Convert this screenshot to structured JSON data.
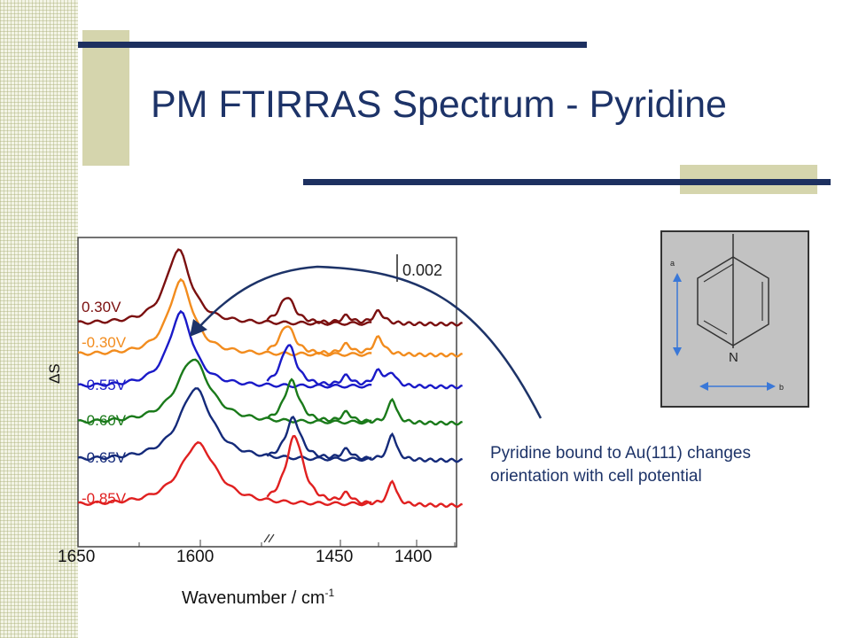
{
  "slide": {
    "title": "PM FTIRRAS Spectrum - Pyridine",
    "caption": "Pyridine bound to Au(111) changes orientation with cell potential"
  },
  "colors": {
    "title": "#1d3368",
    "accent_line": "#1d3060",
    "accent_block": "#d5d5ad",
    "arrow": "#1d3368"
  },
  "molecule": {
    "n_label": "N",
    "axis_a": "a",
    "axis_b": "b"
  },
  "chart_data": {
    "type": "line",
    "xlabel": "Wavenumber / cm",
    "xlabel_sup": "-1",
    "ylabel": "ΔS",
    "x_ticks": [
      "1650",
      "1600",
      "1450",
      "1400"
    ],
    "x_axis_break": true,
    "scale_bar_label": "0.002",
    "grid": false,
    "series": [
      {
        "name": "0.30V",
        "color": "#7b1010",
        "peaks": [
          [
            1609,
            0.003,
            6
          ],
          [
            1485,
            0.0011,
            6
          ],
          [
            1446,
            0.0003,
            4
          ],
          [
            1425,
            0.0005,
            4
          ]
        ]
      },
      {
        "name": "-0.30V",
        "color": "#f28c1e",
        "peaks": [
          [
            1608,
            0.003,
            6
          ],
          [
            1485,
            0.0012,
            6
          ],
          [
            1446,
            0.0004,
            4
          ],
          [
            1425,
            0.0007,
            4
          ]
        ]
      },
      {
        "name": "-0.55V",
        "color": "#1a1ac8",
        "peaks": [
          [
            1608,
            0.003,
            6
          ],
          [
            1484,
            0.0017,
            6
          ],
          [
            1446,
            0.0004,
            4
          ],
          [
            1425,
            0.0006,
            4
          ],
          [
            1416,
            0.0005,
            3
          ]
        ]
      },
      {
        "name": "-0.60V",
        "color": "#1a7a1a",
        "peaks": [
          [
            1603,
            0.0026,
            8
          ],
          [
            1482,
            0.0017,
            6
          ],
          [
            1446,
            0.0004,
            4
          ],
          [
            1416,
            0.001,
            3
          ]
        ]
      },
      {
        "name": "-0.65V",
        "color": "#142a7a",
        "peaks": [
          [
            1602,
            0.0029,
            8
          ],
          [
            1481,
            0.0017,
            6
          ],
          [
            1446,
            0.0004,
            4
          ],
          [
            1416,
            0.0011,
            3
          ]
        ]
      },
      {
        "name": "-0.85V",
        "color": "#e02020",
        "peaks": [
          [
            1601,
            0.0025,
            9
          ],
          [
            1480,
            0.0028,
            7
          ],
          [
            1446,
            0.0004,
            4
          ],
          [
            1416,
            0.001,
            3
          ]
        ]
      }
    ]
  }
}
